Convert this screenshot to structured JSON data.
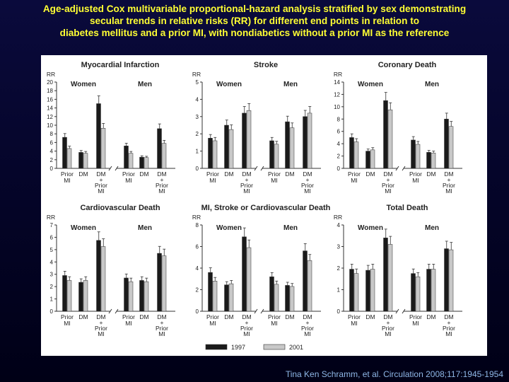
{
  "title": {
    "line1": "Age-adjusted Cox multivariable proportional-hazard analysis stratified by sex demonstrating",
    "line2": "secular trends in relative risks (RR) for different end points in relation to",
    "line3": "diabetes mellitus and a prior MI, with nondiabetics without a prior MI as the reference"
  },
  "citation": "Tina Ken Schramm, et al. Circulation 2008;117:1945-1954",
  "colors": {
    "bar_1997": "#1a1a1a",
    "bar_2001": "#c8c8c8",
    "title": "#ffff33",
    "citation": "#8fb7e6"
  },
  "groups": {
    "women": "Women",
    "men": "Men"
  },
  "ylabel": "RR",
  "legend": [
    {
      "name": "1997",
      "color": "#1a1a1a"
    },
    {
      "name": "2001",
      "color": "#c8c8c8"
    }
  ],
  "chart_data": [
    {
      "type": "bar",
      "title": "Myocardial Infarction",
      "ylabel": "RR",
      "ylim": [
        0,
        20
      ],
      "yticks": [
        0,
        2,
        4,
        6,
        8,
        10,
        12,
        14,
        16,
        18,
        20
      ],
      "categories": [
        "Prior MI",
        "DM",
        "DM + Prior MI",
        "Prior MI",
        "DM",
        "DM + Prior MI"
      ],
      "series": [
        {
          "name": "1997",
          "values": [
            7.2,
            3.7,
            15.0,
            5.2,
            2.6,
            9.2
          ]
        },
        {
          "name": "2001",
          "values": [
            4.6,
            3.5,
            9.3,
            3.5,
            2.5,
            5.8
          ]
        }
      ]
    },
    {
      "type": "bar",
      "title": "Stroke",
      "ylabel": "RR",
      "ylim": [
        0,
        5
      ],
      "yticks": [
        0,
        1,
        2,
        3,
        4,
        5
      ],
      "categories": [
        "Prior MI",
        "DM",
        "DM + Prior MI",
        "Prior MI",
        "DM",
        "DM + Prior MI"
      ],
      "series": [
        {
          "name": "1997",
          "values": [
            1.75,
            2.5,
            3.2,
            1.6,
            2.7,
            3.0
          ]
        },
        {
          "name": "2001",
          "values": [
            1.6,
            2.25,
            3.35,
            1.4,
            2.35,
            3.2
          ]
        }
      ]
    },
    {
      "type": "bar",
      "title": "Coronary Death",
      "ylabel": "RR",
      "ylim": [
        0,
        14
      ],
      "yticks": [
        0,
        2,
        4,
        6,
        8,
        10,
        12,
        14
      ],
      "categories": [
        "Prior MI",
        "DM",
        "DM + Prior MI",
        "Prior MI",
        "DM",
        "DM + Prior MI"
      ],
      "series": [
        {
          "name": "1997",
          "values": [
            5.0,
            2.8,
            11.0,
            4.6,
            2.6,
            8.0
          ]
        },
        {
          "name": "2001",
          "values": [
            4.3,
            3.0,
            9.5,
            3.9,
            2.5,
            6.8
          ]
        }
      ]
    },
    {
      "type": "bar",
      "title": "Cardiovascular Death",
      "ylabel": "RR",
      "ylim": [
        0,
        7
      ],
      "yticks": [
        0,
        1,
        2,
        3,
        4,
        5,
        6,
        7
      ],
      "categories": [
        "Prior MI",
        "DM",
        "DM + Prior MI",
        "Prior MI",
        "DM",
        "DM + Prior MI"
      ],
      "series": [
        {
          "name": "1997",
          "values": [
            2.9,
            2.35,
            5.75,
            2.7,
            2.5,
            4.7
          ]
        },
        {
          "name": "2001",
          "values": [
            2.5,
            2.5,
            5.25,
            2.4,
            2.4,
            4.5
          ]
        }
      ]
    },
    {
      "type": "bar",
      "title": "MI, Stroke or Cardiovascular Death",
      "ylabel": "RR",
      "ylim": [
        0,
        8
      ],
      "yticks": [
        0,
        2,
        4,
        6,
        8
      ],
      "categories": [
        "Prior MI",
        "DM",
        "DM + Prior MI",
        "Prior MI",
        "DM",
        "DM + Prior MI"
      ],
      "series": [
        {
          "name": "1997",
          "values": [
            3.6,
            2.45,
            6.9,
            3.2,
            2.4,
            5.6
          ]
        },
        {
          "name": "2001",
          "values": [
            2.8,
            2.55,
            5.9,
            2.5,
            2.3,
            4.7
          ]
        }
      ]
    },
    {
      "type": "bar",
      "title": "Total Death",
      "ylabel": "RR",
      "ylim": [
        0,
        4
      ],
      "yticks": [
        0,
        1,
        2,
        3,
        4
      ],
      "categories": [
        "Prior MI",
        "DM",
        "DM + Prior MI",
        "Prior MI",
        "DM",
        "DM + Prior MI"
      ],
      "series": [
        {
          "name": "1997",
          "values": [
            1.95,
            1.9,
            3.4,
            1.75,
            1.95,
            2.9
          ]
        },
        {
          "name": "2001",
          "values": [
            1.75,
            1.95,
            3.1,
            1.6,
            1.95,
            2.85
          ]
        }
      ]
    }
  ]
}
